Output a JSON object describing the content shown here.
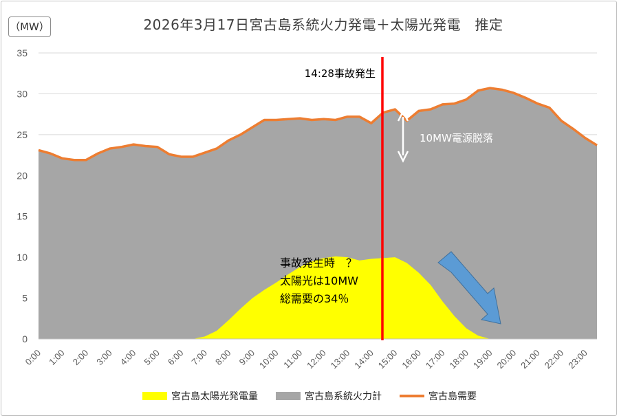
{
  "title": "2026年3月17日宮古島系統火力発電＋太陽光発電　推定",
  "unit_label": "（MW）",
  "colors": {
    "solar": "#ffff00",
    "thermal": "#a6a6a6",
    "demand": "#ed7d31",
    "accident_line": "#ff0000",
    "arrow_blue": "#5b9bd5",
    "annotation_white": "#ffffff"
  },
  "annotations": {
    "accident_time": "14:28事故発生",
    "power_loss": "10MW電源脱落",
    "solar_note_line1": "事故発生時　？",
    "solar_note_line2": "太陽光は10MW",
    "solar_note_line3": "総需要の34％"
  },
  "legend": {
    "solar": "宮古島太陽光発電量",
    "thermal": "宮古島系統火力計",
    "demand": "宮古島需要"
  },
  "chart_data": {
    "type": "area",
    "title": "2026年3月17日宮古島系統火力発電＋太陽光発電　推定",
    "ylabel": "（MW）",
    "ylim": [
      0,
      35
    ],
    "yticks": [
      0,
      5,
      10,
      15,
      20,
      25,
      30,
      35
    ],
    "x_tick_labels": [
      "0:00",
      "1:00",
      "2:00",
      "3:00",
      "4:00",
      "5:00",
      "6:00",
      "7:00",
      "8:00",
      "9:00",
      "10:00",
      "11:00",
      "12:00",
      "13:00",
      "14:00",
      "15:00",
      "16:00",
      "17:00",
      "18:00",
      "19:00",
      "20:00",
      "21:00",
      "22:00",
      "23:00"
    ],
    "x_hours": [
      0,
      0.5,
      1,
      1.5,
      2,
      2.5,
      3,
      3.5,
      4,
      4.5,
      5,
      5.5,
      6,
      6.5,
      7,
      7.5,
      8,
      8.5,
      9,
      9.5,
      10,
      10.5,
      11,
      11.5,
      12,
      12.5,
      13,
      13.5,
      14,
      14.5,
      15,
      15.5,
      16,
      16.5,
      17,
      17.5,
      18,
      18.5,
      19,
      19.5,
      20,
      20.5,
      21,
      21.5,
      22,
      22.5,
      23,
      23.5
    ],
    "series": [
      {
        "name": "宮古島需要",
        "style": "line",
        "values": [
          23.1,
          22.7,
          22.1,
          21.9,
          21.9,
          22.7,
          23.3,
          23.5,
          23.8,
          23.6,
          23.5,
          22.6,
          22.3,
          22.3,
          22.8,
          23.3,
          24.3,
          25.0,
          25.9,
          26.8,
          26.8,
          26.9,
          27.0,
          26.8,
          26.9,
          26.8,
          27.2,
          27.2,
          26.4,
          27.7,
          28.1,
          26.7,
          27.9,
          28.1,
          28.7,
          28.8,
          29.3,
          30.4,
          30.7,
          30.5,
          30.1,
          29.5,
          28.8,
          28.3,
          26.7,
          25.7,
          24.6,
          23.7
        ]
      },
      {
        "name": "宮古島太陽光発電量",
        "style": "area",
        "values": [
          0,
          0,
          0,
          0,
          0,
          0,
          0,
          0,
          0,
          0,
          0,
          0,
          0,
          0,
          0.3,
          1.0,
          2.3,
          3.7,
          5.0,
          6.0,
          6.9,
          7.9,
          8.8,
          9.5,
          9.9,
          10.1,
          10.0,
          9.6,
          9.8,
          9.9,
          10.0,
          9.3,
          8.1,
          6.6,
          4.6,
          2.8,
          1.3,
          0.4,
          0,
          0,
          0,
          0,
          0,
          0,
          0,
          0,
          0,
          0
        ]
      },
      {
        "name": "宮古島系統火力計",
        "style": "area",
        "note": "demand minus solar",
        "values": [
          23.1,
          22.7,
          22.1,
          21.9,
          21.9,
          22.7,
          23.3,
          23.5,
          23.8,
          23.6,
          23.5,
          22.6,
          22.3,
          22.3,
          22.5,
          22.3,
          22.0,
          21.3,
          20.9,
          20.8,
          19.9,
          19.0,
          18.2,
          17.3,
          17.0,
          16.7,
          17.2,
          17.6,
          16.6,
          17.8,
          18.1,
          17.4,
          19.8,
          21.5,
          24.1,
          26.0,
          28.0,
          30.0,
          30.7,
          30.5,
          30.1,
          29.5,
          28.8,
          28.3,
          26.7,
          25.7,
          24.6,
          23.7
        ]
      }
    ],
    "accident_hour": 14.47,
    "legend_position": "bottom",
    "grid": true
  }
}
